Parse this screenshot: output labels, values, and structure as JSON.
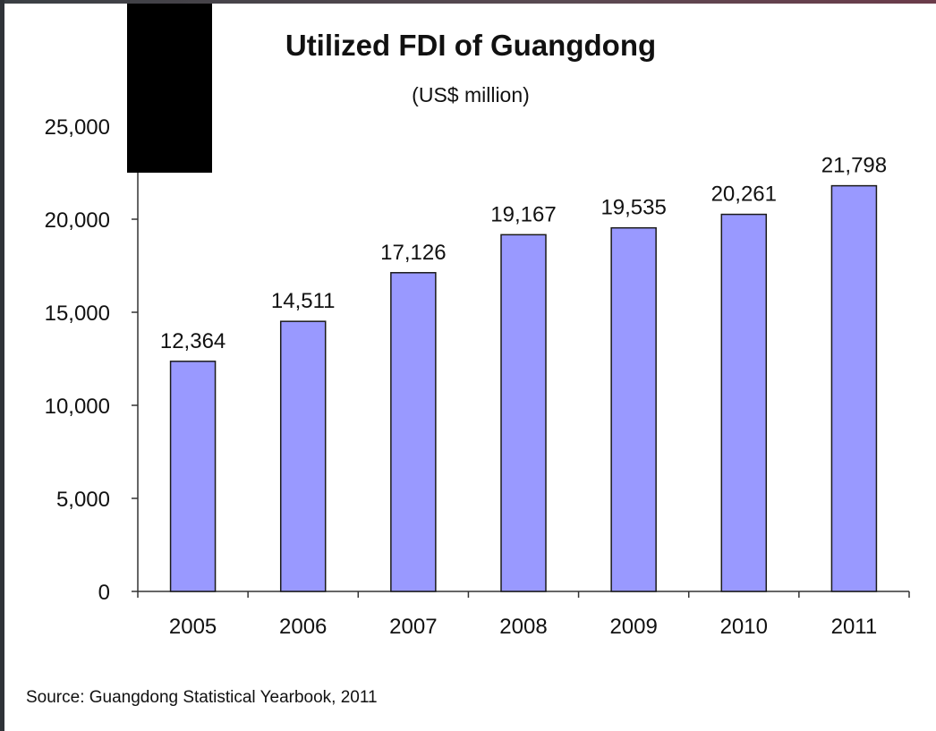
{
  "chart_data": {
    "type": "bar",
    "title": "Utilized FDI of Guangdong",
    "subtitle": "(US$ million)",
    "categories": [
      "2005",
      "2006",
      "2007",
      "2008",
      "2009",
      "2010",
      "2011"
    ],
    "values": [
      12364,
      14511,
      17126,
      19167,
      19535,
      20261,
      21798
    ],
    "data_labels": [
      "12,364",
      "14,511",
      "17,126",
      "19,167",
      "19,535",
      "20,261",
      "21,798"
    ],
    "y_ticks": [
      0,
      5000,
      10000,
      15000,
      20000,
      25000
    ],
    "y_tick_labels": [
      "0",
      "5,000",
      "10,000",
      "15,000",
      "20,000",
      "25,000"
    ],
    "ylim": [
      0,
      25000
    ],
    "xlabel": "",
    "ylabel": "",
    "grid": false,
    "legend": "none",
    "colors": {
      "bar_fill": "#9999ff",
      "bar_stroke": "#1a1a1a",
      "axis": "#333333"
    },
    "source": "Source: Guangdong Statistical Yearbook, 2011"
  }
}
